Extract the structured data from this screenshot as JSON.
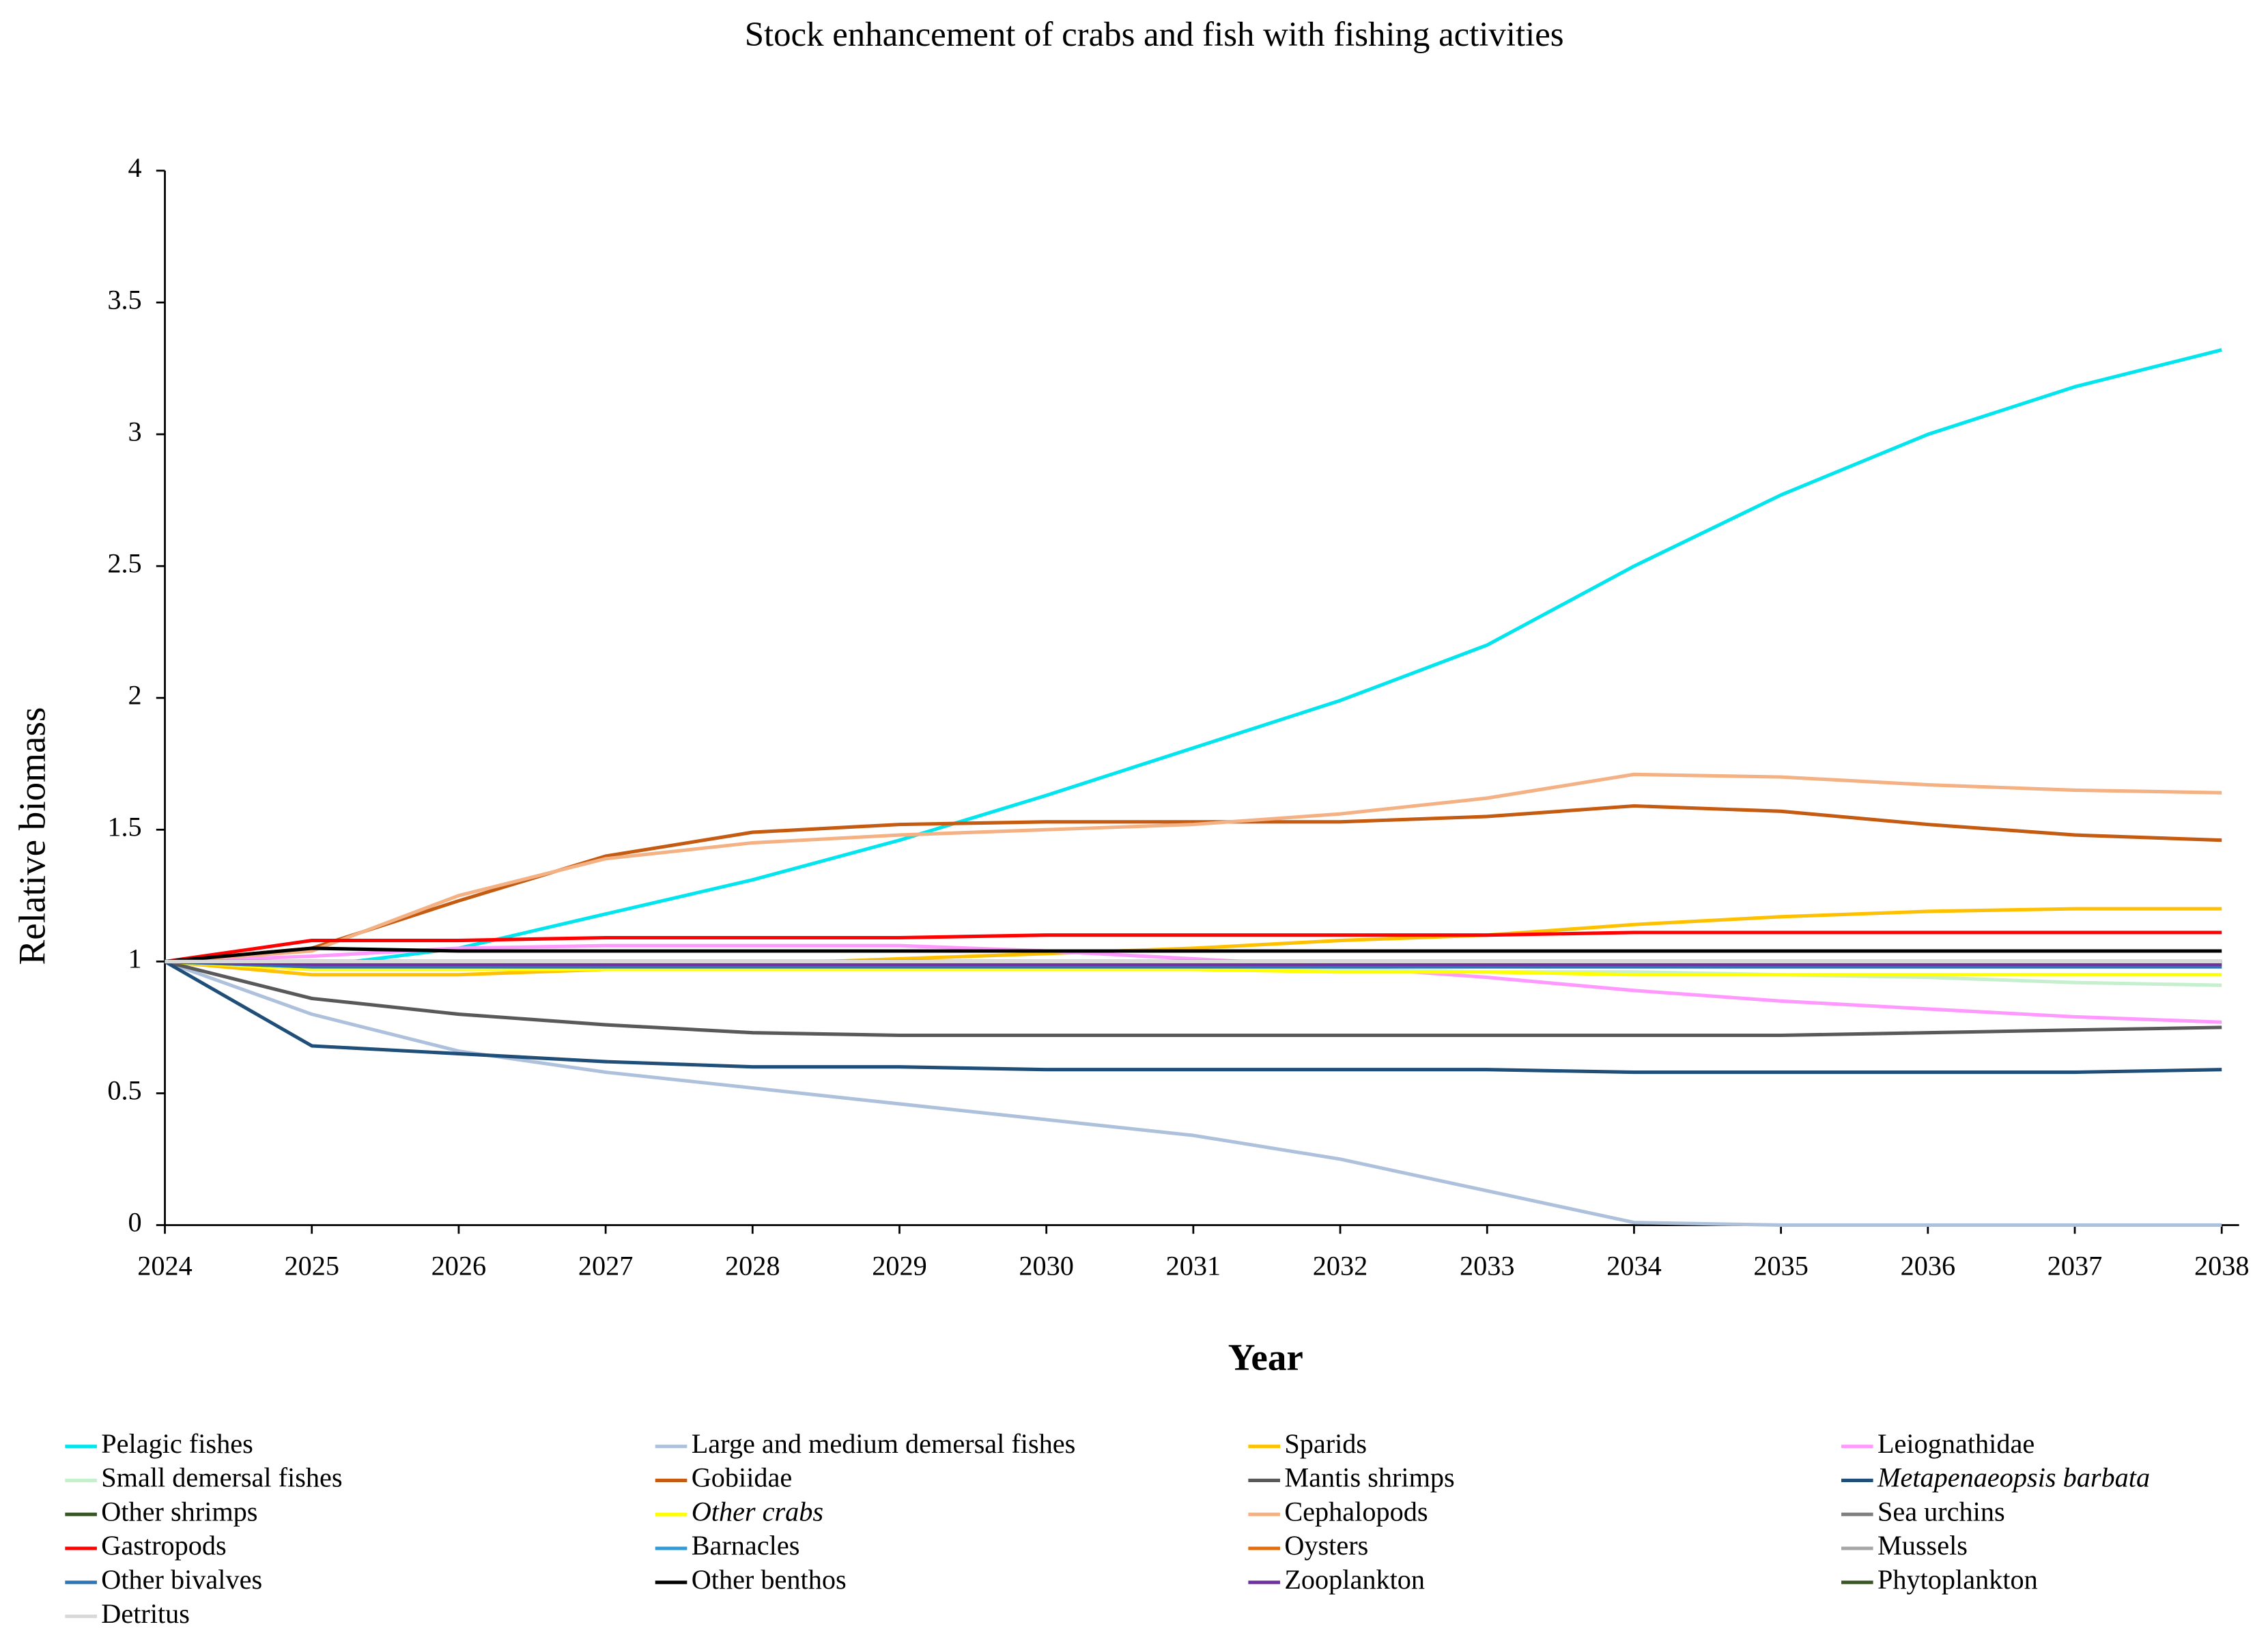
{
  "chart_data": {
    "type": "line",
    "title": "Stock enhancement of crabs and fish with fishing activities",
    "x_label": "Year",
    "y_label": "Relative biomass",
    "x": [
      2024,
      2025,
      2026,
      2027,
      2028,
      2029,
      2030,
      2031,
      2032,
      2033,
      2034,
      2035,
      2036,
      2037,
      2038
    ],
    "xlim": [
      2024,
      2038
    ],
    "xticks": [
      2024,
      2025,
      2026,
      2027,
      2028,
      2029,
      2030,
      2031,
      2032,
      2033,
      2034,
      2035,
      2036,
      2037,
      2038
    ],
    "ylim": [
      0,
      4
    ],
    "yticks": [
      0,
      0.5,
      1,
      1.5,
      2,
      2.5,
      3,
      3.5,
      4
    ],
    "grid": false,
    "series": [
      {
        "name": "Pelagic fishes",
        "color": "#00e5ee",
        "values": [
          1,
          0.98,
          1.05,
          1.18,
          1.31,
          1.46,
          1.63,
          1.81,
          1.99,
          2.2,
          2.5,
          2.77,
          3.0,
          3.18,
          3.32
        ]
      },
      {
        "name": "Large and medium demersal fishes",
        "color": "#adc0dc",
        "values": [
          1,
          0.8,
          0.66,
          0.58,
          0.52,
          0.46,
          0.4,
          0.34,
          0.25,
          0.13,
          0.01,
          0,
          0,
          0,
          0
        ]
      },
      {
        "name": "Sparids",
        "color": "#ffc000",
        "values": [
          1,
          0.95,
          0.95,
          0.97,
          0.99,
          1.01,
          1.03,
          1.05,
          1.08,
          1.1,
          1.14,
          1.17,
          1.19,
          1.2,
          1.2
        ]
      },
      {
        "name": "Leiognathidae",
        "color": "#ff99ff",
        "values": [
          1,
          1.02,
          1.05,
          1.06,
          1.06,
          1.06,
          1.04,
          1.01,
          0.98,
          0.94,
          0.89,
          0.85,
          0.82,
          0.79,
          0.77
        ]
      },
      {
        "name": "Small demersal fishes",
        "color": "#c6efce",
        "values": [
          1,
          0.97,
          0.97,
          0.97,
          0.97,
          0.97,
          0.97,
          0.97,
          0.97,
          0.96,
          0.96,
          0.95,
          0.94,
          0.92,
          0.91
        ]
      },
      {
        "name": "Gobiidae",
        "color": "#c55a11",
        "values": [
          1,
          1.05,
          1.23,
          1.4,
          1.49,
          1.52,
          1.53,
          1.53,
          1.53,
          1.55,
          1.59,
          1.57,
          1.52,
          1.48,
          1.46
        ]
      },
      {
        "name": "Mantis shrimps",
        "color": "#595959",
        "values": [
          1,
          0.86,
          0.8,
          0.76,
          0.73,
          0.72,
          0.72,
          0.72,
          0.72,
          0.72,
          0.72,
          0.72,
          0.73,
          0.74,
          0.75
        ]
      },
      {
        "name": "Metapenaeopsis barbata",
        "italic": true,
        "color": "#1f4e79",
        "values": [
          1,
          0.68,
          0.65,
          0.62,
          0.6,
          0.6,
          0.59,
          0.59,
          0.59,
          0.59,
          0.58,
          0.58,
          0.58,
          0.58,
          0.59
        ]
      },
      {
        "name": "Other shrimps",
        "color": "#375623",
        "values": [
          1,
          1,
          1,
          1,
          1,
          1,
          1,
          1,
          1,
          1,
          1,
          1,
          1,
          1,
          1
        ]
      },
      {
        "name": "Other crabs",
        "italic": true,
        "color": "#ffff00",
        "values": [
          1,
          0.97,
          0.97,
          0.97,
          0.97,
          0.97,
          0.97,
          0.97,
          0.96,
          0.96,
          0.95,
          0.95,
          0.95,
          0.95,
          0.95
        ]
      },
      {
        "name": "Cephalopods",
        "color": "#f4b183",
        "values": [
          1,
          1.04,
          1.25,
          1.39,
          1.45,
          1.48,
          1.5,
          1.52,
          1.56,
          1.62,
          1.71,
          1.7,
          1.67,
          1.65,
          1.64
        ]
      },
      {
        "name": "Sea urchins",
        "color": "#7f7f7f",
        "values": [
          1,
          0.99,
          0.99,
          0.99,
          0.99,
          0.99,
          0.99,
          0.99,
          0.99,
          0.99,
          0.99,
          0.99,
          0.99,
          0.99,
          0.99
        ]
      },
      {
        "name": "Gastropods",
        "color": "#ff0000",
        "values": [
          1,
          1.08,
          1.08,
          1.09,
          1.09,
          1.09,
          1.1,
          1.1,
          1.1,
          1.1,
          1.11,
          1.11,
          1.11,
          1.11,
          1.11
        ]
      },
      {
        "name": "Barnacles",
        "color": "#2e9bd6",
        "values": [
          1,
          0.98,
          0.98,
          0.98,
          0.98,
          0.98,
          0.98,
          0.98,
          0.98,
          0.98,
          0.98,
          0.98,
          0.98,
          0.98,
          0.98
        ]
      },
      {
        "name": "Oysters",
        "color": "#e46c0a",
        "values": [
          1,
          1,
          1,
          1,
          1,
          1,
          1,
          1,
          1,
          1,
          1,
          1,
          1,
          1,
          1
        ]
      },
      {
        "name": "Mussels",
        "color": "#a6a6a6",
        "values": [
          1,
          0.99,
          0.99,
          0.99,
          0.99,
          0.99,
          0.99,
          0.99,
          0.99,
          0.99,
          0.99,
          0.99,
          0.99,
          0.99,
          0.99
        ]
      },
      {
        "name": "Other bivalves",
        "color": "#2e75b6",
        "values": [
          1,
          0.98,
          0.98,
          0.98,
          0.98,
          0.98,
          0.98,
          0.98,
          0.98,
          0.98,
          0.98,
          0.98,
          0.98,
          0.98,
          0.98
        ]
      },
      {
        "name": "Other benthos",
        "color": "#000000",
        "values": [
          1,
          1.05,
          1.04,
          1.04,
          1.04,
          1.04,
          1.04,
          1.04,
          1.04,
          1.04,
          1.04,
          1.04,
          1.04,
          1.04,
          1.04
        ]
      },
      {
        "name": "Zooplankton",
        "color": "#7030a0",
        "values": [
          1,
          0.99,
          0.99,
          0.99,
          0.99,
          0.99,
          0.99,
          0.99,
          0.99,
          0.99,
          0.99,
          0.99,
          0.99,
          0.99,
          0.99
        ]
      },
      {
        "name": "Phytoplankton",
        "color": "#385723",
        "values": [
          1,
          1,
          1,
          1,
          1,
          1,
          1,
          1,
          1,
          1,
          1,
          1,
          1,
          1,
          1
        ]
      },
      {
        "name": "Detritus",
        "color": "#d9d9d9",
        "values": [
          1,
          1,
          1,
          1,
          1,
          1,
          1,
          1,
          1,
          1,
          1,
          1,
          1,
          1,
          1
        ]
      }
    ]
  }
}
